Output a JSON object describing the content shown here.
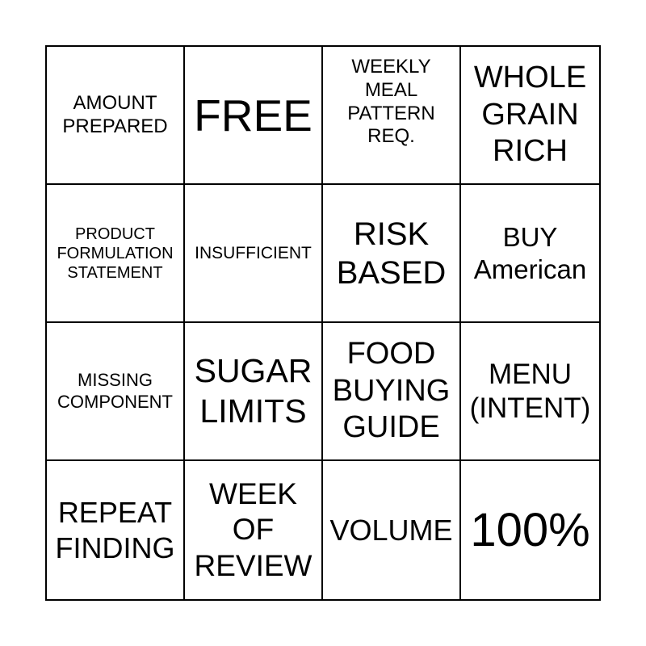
{
  "page": {
    "background_color": "#ffffff"
  },
  "card": {
    "type": "bingo-card",
    "rows": 4,
    "cols": 4,
    "grid_line_color": "#000000",
    "text_color": "#000000",
    "cell_background_color": "#ffffff",
    "cells": [
      {
        "label": "AMOUNT\nPREPARED"
      },
      {
        "label": "FREE"
      },
      {
        "label": "WEEKLY\nMEAL\nPATTERN\nREQ."
      },
      {
        "label": "WHOLE\nGRAIN\nRICH"
      },
      {
        "label": "PRODUCT\nFORMULATION\nSTATEMENT"
      },
      {
        "label": "INSUFFICIENT"
      },
      {
        "label": "RISK\nBASED"
      },
      {
        "label": "BUY\nAmerican"
      },
      {
        "label": "MISSING\nCOMPONENT"
      },
      {
        "label": "SUGAR\nLIMITS"
      },
      {
        "label": "FOOD\nBUYING\nGUIDE"
      },
      {
        "label": "MENU\n(INTENT)"
      },
      {
        "label": "REPEAT\nFINDING"
      },
      {
        "label": "WEEK\nOF\nREVIEW"
      },
      {
        "label": "VOLUME"
      },
      {
        "label": "100%"
      }
    ]
  }
}
